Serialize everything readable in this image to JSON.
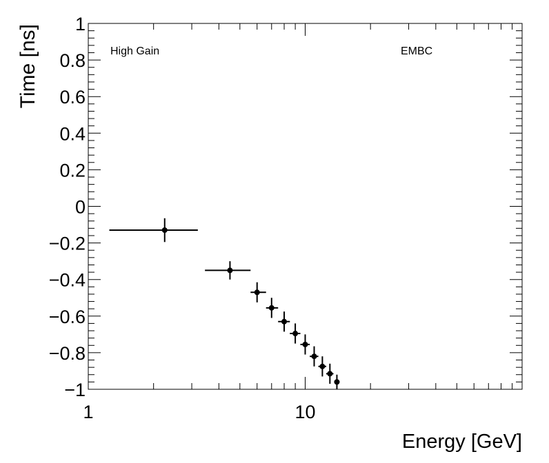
{
  "chart_data": {
    "type": "scatter",
    "title": "",
    "xlabel": "Energy [GeV]",
    "ylabel": "Time [ns]",
    "x_scale": "log",
    "xlim": [
      1,
      100
    ],
    "ylim": [
      -1,
      1
    ],
    "grid": false,
    "annotations": [
      "High Gain",
      "EMBC"
    ],
    "x_tick_labels": [
      {
        "value": 1,
        "label": "1"
      },
      {
        "value": 10,
        "label": "10"
      }
    ],
    "y_tick_labels": [
      {
        "value": 1,
        "label": "1"
      },
      {
        "value": 0.8,
        "label": "0.8"
      },
      {
        "value": 0.6,
        "label": "0.6"
      },
      {
        "value": 0.4,
        "label": "0.4"
      },
      {
        "value": 0.2,
        "label": "0.2"
      },
      {
        "value": 0,
        "label": "0"
      },
      {
        "value": -0.2,
        "label": "−0.2"
      },
      {
        "value": -0.4,
        "label": "−0.4"
      },
      {
        "value": -0.6,
        "label": "−0.6"
      },
      {
        "value": -0.8,
        "label": "−0.8"
      },
      {
        "value": -1,
        "label": "−1"
      }
    ],
    "series": [
      {
        "points": [
          {
            "x": 2.25,
            "y": -0.13,
            "xerr_low": 1.25,
            "xerr_high": 3.2,
            "yerr": 0.065
          },
          {
            "x": 4.5,
            "y": -0.35,
            "xerr_low": 3.45,
            "xerr_high": 5.6,
            "yerr": 0.05
          },
          {
            "x": 6.0,
            "y": -0.47,
            "xerr_low": 5.6,
            "xerr_high": 6.6,
            "yerr": 0.055
          },
          {
            "x": 7.0,
            "y": -0.555,
            "xerr_low": 6.6,
            "xerr_high": 7.5,
            "yerr": 0.055
          },
          {
            "x": 8.0,
            "y": -0.63,
            "xerr_low": 7.5,
            "xerr_high": 8.5,
            "yerr": 0.055
          },
          {
            "x": 9.0,
            "y": -0.695,
            "xerr_low": 8.5,
            "xerr_high": 9.5,
            "yerr": 0.055
          },
          {
            "x": 10.0,
            "y": -0.755,
            "xerr_low": 9.5,
            "xerr_high": 10.5,
            "yerr": 0.055
          },
          {
            "x": 11.0,
            "y": -0.82,
            "xerr_low": 10.5,
            "xerr_high": 11.5,
            "yerr": 0.055
          },
          {
            "x": 12.0,
            "y": -0.875,
            "xerr_low": 11.5,
            "xerr_high": 12.5,
            "yerr": 0.055
          },
          {
            "x": 13.0,
            "y": -0.915,
            "xerr_low": 12.5,
            "xerr_high": 13.5,
            "yerr": 0.055
          },
          {
            "x": 14.0,
            "y": -0.96,
            "xerr_low": 13.6,
            "xerr_high": 14.4,
            "yerr": 0.04
          }
        ]
      }
    ]
  }
}
